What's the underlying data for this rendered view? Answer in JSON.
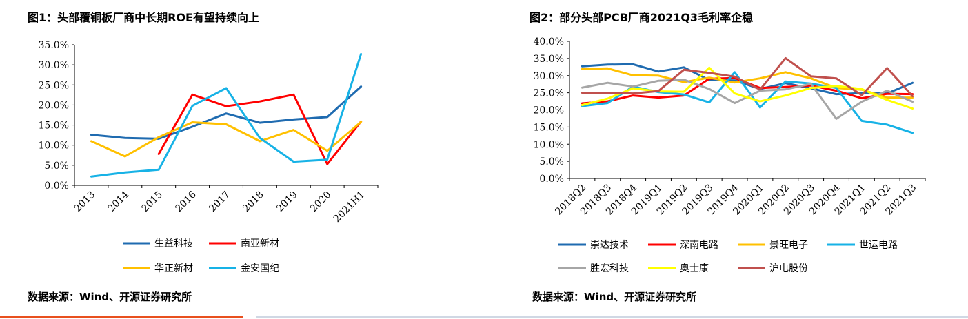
{
  "figures": [
    {
      "title": "图1：头部覆铜板厂商中长期ROE有望持续向上",
      "source": "数据来源：Wind、开源证券研究所"
    },
    {
      "title": "图2：部分头部PCB厂商2021Q3毛利率企稳",
      "source": "数据来源：Wind、开源证券研究所"
    }
  ],
  "chart_data": [
    {
      "type": "line",
      "title": "图1：头部覆铜板厂商中长期ROE有望持续向上",
      "x": [
        "2013",
        "2014",
        "2015",
        "2016",
        "2017",
        "2018",
        "2019",
        "2020",
        "2021H1"
      ],
      "ylim": [
        0,
        35
      ],
      "yticks": [
        "0.0%",
        "5.0%",
        "10.0%",
        "15.0%",
        "20.0%",
        "25.0%",
        "30.0%",
        "35.0%"
      ],
      "grid": false,
      "legend_position": "bottom",
      "series": [
        {
          "name": "生益科技",
          "color": "#1f6bb0",
          "values": [
            12.6,
            11.8,
            11.6,
            14.6,
            17.9,
            15.6,
            16.4,
            17.0,
            24.6
          ]
        },
        {
          "name": "南亚新材",
          "color": "#ff0000",
          "values": [
            null,
            null,
            7.8,
            22.6,
            19.7,
            20.9,
            22.6,
            5.3,
            15.9
          ]
        },
        {
          "name": "华正新材",
          "color": "#ffc000",
          "values": [
            11.0,
            7.2,
            12.0,
            15.7,
            15.2,
            11.0,
            13.8,
            8.6,
            15.8
          ]
        },
        {
          "name": "金安国纪",
          "color": "#17b2e6",
          "values": [
            2.2,
            3.2,
            3.9,
            19.8,
            24.2,
            11.8,
            5.9,
            6.4,
            32.7
          ]
        }
      ]
    },
    {
      "type": "line",
      "title": "图2：部分头部PCB厂商2021Q3毛利率企稳",
      "x": [
        "2018Q2",
        "2018Q3",
        "2018Q4",
        "2019Q1",
        "2019Q2",
        "2019Q3",
        "2019Q4",
        "2020Q1",
        "2020Q2",
        "2020Q3",
        "2020Q4",
        "2021Q1",
        "2021Q2",
        "2021Q3"
      ],
      "ylim": [
        0,
        40
      ],
      "yticks": [
        "0.0%",
        "5.0%",
        "10.0%",
        "15.0%",
        "20.0%",
        "25.0%",
        "30.0%",
        "35.0%",
        "40.0%"
      ],
      "grid": false,
      "legend_position": "bottom",
      "series": [
        {
          "name": "崇达技术",
          "color": "#1f6bb0",
          "values": [
            32.7,
            33.2,
            33.3,
            31.2,
            32.4,
            28.7,
            28.6,
            26.1,
            27.8,
            26.3,
            24.6,
            24.9,
            24.8,
            27.9
          ]
        },
        {
          "name": "深南电路",
          "color": "#ff0000",
          "values": [
            21.9,
            22.5,
            24.2,
            23.6,
            24.2,
            29.1,
            29.3,
            26.4,
            26.7,
            27.1,
            25.6,
            23.4,
            24.7,
            24.6
          ]
        },
        {
          "name": "景旺电子",
          "color": "#ffc000",
          "values": [
            31.9,
            32.1,
            30.1,
            30.0,
            28.1,
            29.4,
            28.0,
            29.2,
            31.0,
            29.2,
            26.4,
            25.9,
            23.6,
            23.6
          ]
        },
        {
          "name": "世运电路",
          "color": "#17b2e6",
          "values": [
            21.1,
            22.0,
            26.8,
            25.2,
            24.5,
            22.2,
            31.0,
            20.7,
            28.3,
            27.7,
            26.4,
            16.8,
            15.7,
            13.3
          ]
        },
        {
          "name": "胜宏科技",
          "color": "#a6a6a6",
          "values": [
            26.5,
            27.9,
            26.8,
            28.5,
            28.8,
            26.1,
            22.0,
            25.6,
            26.0,
            27.6,
            17.4,
            22.4,
            25.6,
            22.4
          ]
        },
        {
          "name": "奥士康",
          "color": "#ffff00",
          "values": [
            21.4,
            23.3,
            26.3,
            25.4,
            25.3,
            32.3,
            24.8,
            22.5,
            24.2,
            26.4,
            27.0,
            26.1,
            22.9,
            20.4
          ]
        },
        {
          "name": "沪电股份",
          "color": "#c0504d",
          "values": [
            25.0,
            25.0,
            24.8,
            25.5,
            31.7,
            30.8,
            29.7,
            25.9,
            35.1,
            29.8,
            29.2,
            24.3,
            32.2,
            24.0
          ]
        }
      ]
    }
  ]
}
